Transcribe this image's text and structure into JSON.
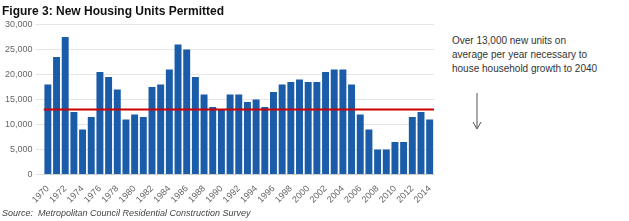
{
  "chart_data": {
    "type": "bar",
    "title": "Figure 3: New Housing Units Permitted",
    "subtitle": "Source:  Metropolitan Council Residential Construction Survey",
    "annotation": "Over 13,000 new units on\naverage per year necessary to\nhouse household growth to 2040",
    "categories": [
      "1970",
      null,
      "1972",
      null,
      "1974",
      null,
      "1976",
      null,
      "1978",
      null,
      "1980",
      null,
      "1982",
      null,
      "1984",
      null,
      "1986",
      null,
      "1988",
      null,
      "1990",
      null,
      "1992",
      null,
      "1994",
      null,
      "1996",
      null,
      "1998",
      null,
      "2000",
      null,
      "2002",
      null,
      "2004",
      null,
      "2006",
      null,
      "2008",
      null,
      "2010",
      null,
      "2012",
      null,
      "2014"
    ],
    "values": [
      18000,
      23500,
      27500,
      12500,
      9000,
      11500,
      20500,
      19500,
      17000,
      11000,
      12000,
      11500,
      17500,
      18000,
      21000,
      26000,
      25000,
      19500,
      16000,
      13500,
      13000,
      16000,
      16000,
      14500,
      15000,
      13500,
      16500,
      18000,
      18500,
      19000,
      18500,
      18500,
      20500,
      21000,
      21000,
      18000,
      12000,
      9000,
      5000,
      5000,
      6500,
      6500,
      11500,
      12500,
      11000
    ],
    "color": "#1a5ca8",
    "reference_line": {
      "value": 13000,
      "color": "#cc0000"
    },
    "ylim": [
      0,
      30000
    ],
    "yticks": [
      0,
      {
        "value": 5000,
        "label": "5,000"
      },
      {
        "value": 10000,
        "label": "10,000"
      },
      {
        "value": 15000,
        "label": "15,000"
      },
      {
        "value": 20000,
        "label": "20,000"
      },
      {
        "value": 25000,
        "label": "25,000"
      },
      {
        "value": 30000,
        "label": "30,000"
      }
    ],
    "grid": true
  }
}
